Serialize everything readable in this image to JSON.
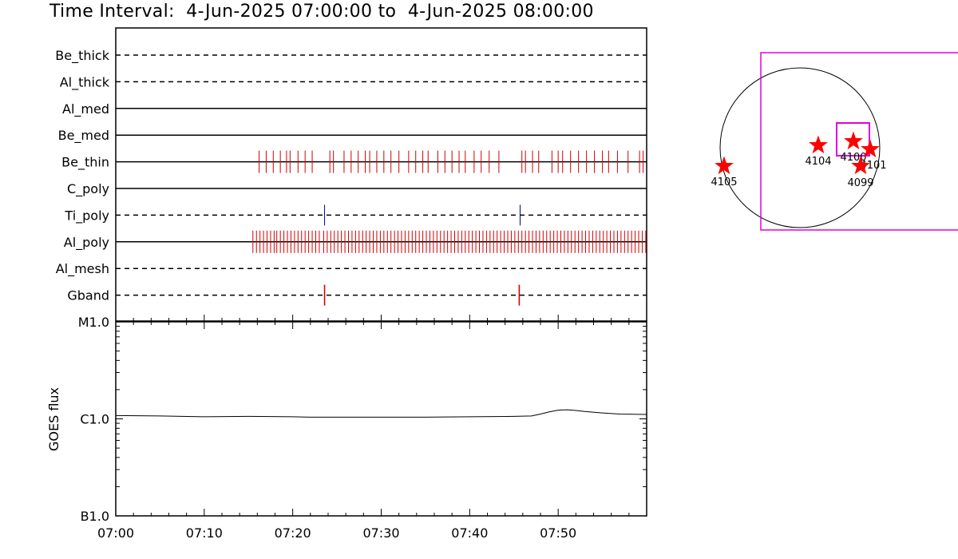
{
  "title": {
    "prefix": "Time Interval:",
    "start": "4-Jun-2025 07:00:00",
    "to": "to",
    "end": "4-Jun-2025 08:00:00"
  },
  "chart_data": [
    {
      "type": "event-raster",
      "time_range_min": [
        0,
        60
      ],
      "rows": [
        {
          "label": "Be_thick",
          "style": "dashed",
          "events": [],
          "color": "#d40000"
        },
        {
          "label": "Al_thick",
          "style": "dashed",
          "events": [],
          "color": "#d40000"
        },
        {
          "label": "Al_med",
          "style": "solid",
          "events": [],
          "color": "#d40000"
        },
        {
          "label": "Be_med",
          "style": "solid",
          "events": [],
          "color": "#d40000"
        },
        {
          "label": "Be_thin",
          "style": "solid",
          "color": "#d40000",
          "events": [
            16.2,
            17.0,
            17.8,
            18.6,
            19.3,
            19.7,
            20.6,
            21.4,
            22.2,
            24.2,
            24.6,
            25.8,
            26.6,
            27.4,
            28.2,
            28.7,
            29.5,
            30.3,
            31.1,
            32.0,
            33.1,
            33.9,
            34.7,
            35.3,
            36.4,
            37.2,
            38.0,
            38.8,
            39.5,
            40.5,
            41.3,
            42.2,
            43.3,
            45.9,
            46.3,
            47.1,
            47.8,
            49.3,
            50.0,
            50.5,
            51.4,
            52.3,
            53.2,
            54.1,
            55.0,
            55.7,
            56.7,
            57.9,
            59.2,
            59.6
          ]
        },
        {
          "label": "C_poly",
          "style": "solid",
          "events": [],
          "color": "#d40000"
        },
        {
          "label": "Ti_poly",
          "style": "dashed",
          "color": "#00008b",
          "events": [
            23.6,
            45.7
          ]
        },
        {
          "label": "Al_poly",
          "style": "solid",
          "color": "#d40000",
          "events": [
            15.5,
            15.9,
            16.3,
            16.7,
            17.1,
            17.5,
            17.9,
            18.2,
            18.6,
            19.0,
            19.4,
            19.8,
            20.2,
            20.6,
            21.0,
            21.4,
            21.8,
            22.2,
            22.6,
            23.0,
            23.5,
            23.9,
            24.3,
            24.7,
            25.1,
            25.5,
            25.9,
            26.3,
            26.7,
            27.1,
            27.5,
            27.9,
            28.3,
            28.7,
            29.1,
            29.5,
            29.9,
            30.3,
            30.7,
            31.1,
            31.5,
            31.9,
            32.3,
            32.7,
            33.1,
            33.5,
            33.9,
            34.3,
            34.7,
            35.1,
            35.5,
            35.9,
            36.3,
            36.7,
            37.1,
            37.5,
            37.9,
            38.3,
            38.7,
            39.1,
            39.5,
            39.9,
            40.3,
            40.7,
            41.1,
            41.5,
            41.9,
            42.3,
            42.7,
            43.1,
            43.5,
            43.9,
            44.3,
            44.7,
            45.1,
            45.5,
            45.9,
            46.3,
            46.7,
            47.1,
            47.5,
            47.9,
            48.3,
            48.7,
            49.1,
            49.5,
            49.9,
            50.3,
            50.7,
            51.1,
            51.5,
            51.9,
            52.3,
            52.7,
            53.1,
            53.5,
            53.9,
            54.3,
            54.7,
            55.1,
            55.5,
            55.9,
            56.3,
            56.7,
            57.1,
            57.5,
            57.9,
            58.3,
            58.7,
            59.1,
            59.5,
            59.9
          ]
        },
        {
          "label": "Al_mesh",
          "style": "dashed",
          "events": [],
          "color": "#d40000"
        },
        {
          "label": "Gband",
          "style": "dashed",
          "color": "#d40000",
          "events": [
            23.6,
            45.6
          ]
        }
      ]
    },
    {
      "type": "line",
      "ylabel": "GOES flux",
      "yscale": "log",
      "ylim": [
        1e-07,
        1e-05
      ],
      "yticks": [
        {
          "value": 1e-05,
          "label": "M1.0"
        },
        {
          "value": 1e-06,
          "label": "C1.0"
        },
        {
          "value": 1e-07,
          "label": "B1.0"
        }
      ],
      "xticks": [
        {
          "value": 0,
          "label": "07:00"
        },
        {
          "value": 10,
          "label": "07:10"
        },
        {
          "value": 20,
          "label": "07:20"
        },
        {
          "value": 30,
          "label": "07:30"
        },
        {
          "value": 40,
          "label": "07:40"
        },
        {
          "value": 50,
          "label": "07:50"
        }
      ],
      "xlim": [
        0,
        60
      ],
      "series": [
        {
          "x": [
            0,
            5,
            10,
            15,
            20,
            22,
            25,
            30,
            35,
            40,
            45,
            47,
            48,
            49,
            50,
            51,
            52,
            53,
            55,
            57,
            60
          ],
          "y": [
            1.08e-06,
            1.07e-06,
            1.05e-06,
            1.06e-06,
            1.05e-06,
            1.04e-06,
            1.04e-06,
            1.04e-06,
            1.04e-06,
            1.05e-06,
            1.06e-06,
            1.07e-06,
            1.12e-06,
            1.18e-06,
            1.23e-06,
            1.24e-06,
            1.22e-06,
            1.19e-06,
            1.15e-06,
            1.12e-06,
            1.11e-06
          ]
        }
      ]
    },
    {
      "type": "scatter",
      "kind": "solar-disk-map",
      "points": [
        {
          "label": "4105",
          "x": -950,
          "y": -230
        },
        {
          "label": "4104",
          "x": 230,
          "y": 30
        },
        {
          "label": "4100",
          "x": 670,
          "y": 80
        },
        {
          "label": "4101",
          "x": 880,
          "y": -20
        },
        {
          "label": "4099",
          "x": 760,
          "y": -230
        }
      ]
    }
  ]
}
